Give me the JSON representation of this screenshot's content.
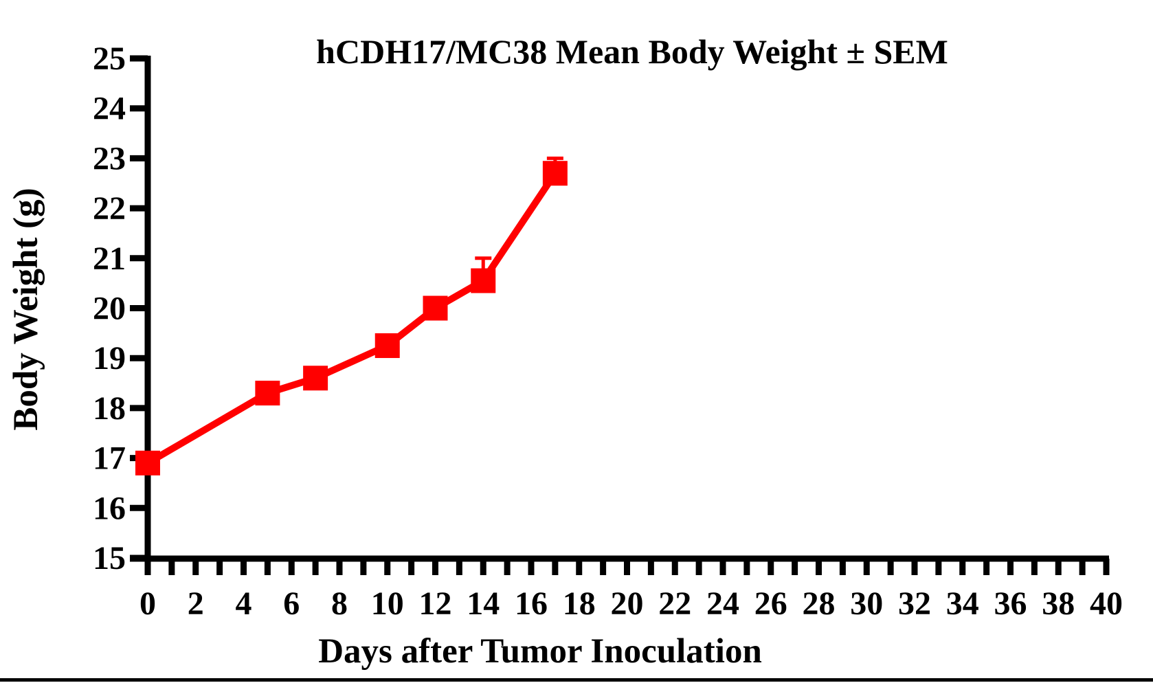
{
  "chart_data": {
    "type": "line",
    "title": "hCDH17/MC38 Mean Body Weight ± SEM",
    "xlabel": "Days after Tumor Inoculation",
    "ylabel": "Body Weight (g)",
    "xlim": [
      0,
      40
    ],
    "ylim": [
      15,
      25
    ],
    "x_tick_labels": [
      0,
      2,
      4,
      6,
      8,
      10,
      12,
      14,
      16,
      18,
      20,
      22,
      24,
      26,
      28,
      30,
      32,
      34,
      36,
      38,
      40
    ],
    "x_minor_tick_step": 1,
    "y_tick_labels": [
      15,
      16,
      17,
      18,
      19,
      20,
      21,
      22,
      23,
      24,
      25
    ],
    "grid": false,
    "legend": "none",
    "axis_color": "#000000",
    "background_color": "#FFFFFF",
    "series": [
      {
        "name": "hCDH17/MC38 mean body weight",
        "color": "#FF0000",
        "marker": "filled-square",
        "error_bars": "SEM upper only",
        "x": [
          0,
          5,
          7,
          10,
          12,
          14,
          17
        ],
        "y": [
          16.9,
          18.3,
          18.6,
          19.25,
          20.0,
          20.55,
          22.7
        ],
        "sem_upper": [
          0,
          0,
          0,
          0,
          0,
          0.45,
          0.3
        ]
      }
    ]
  }
}
